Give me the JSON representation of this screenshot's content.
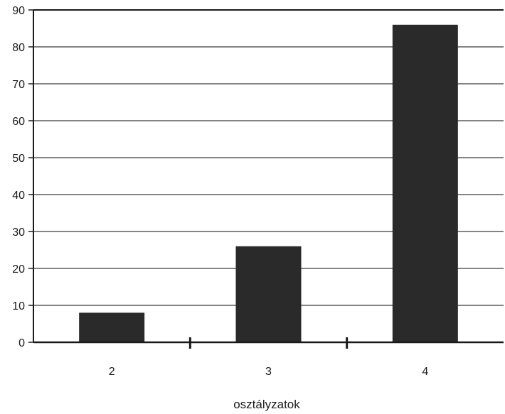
{
  "chart_data": {
    "type": "bar",
    "categories": [
      "2",
      "3",
      "4"
    ],
    "values": [
      8,
      26,
      86
    ],
    "title": "",
    "xlabel": "osztályzatok",
    "ylabel": "",
    "ylim": [
      0,
      90
    ],
    "yticks": [
      0,
      10,
      20,
      30,
      40,
      50,
      60,
      70,
      80,
      90
    ],
    "grid": true,
    "legend": "none",
    "bar_color": "#2a2a2a"
  }
}
